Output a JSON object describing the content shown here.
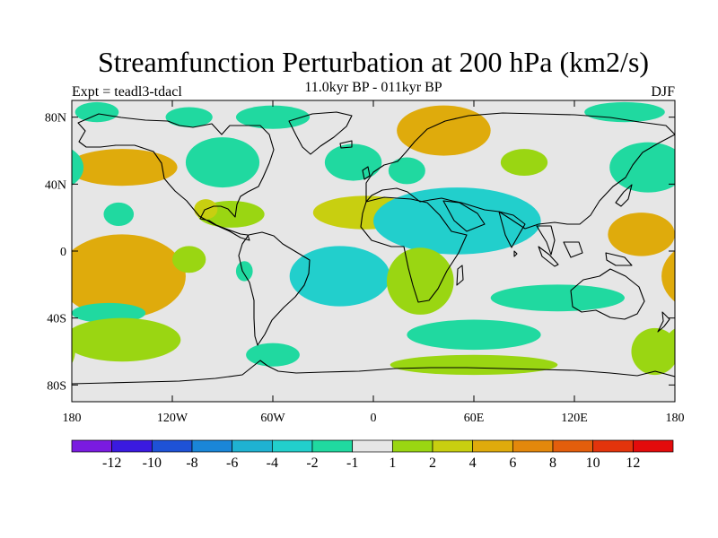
{
  "title": "Streamfunction Perturbation at 200 hPa (km2/s)",
  "left_label": "Expt = teadl3-tdacl",
  "center_label": "11.0kyr BP - 011kyr BP",
  "right_label": "DJF",
  "lat_ticks": [
    "80N",
    "40N",
    "0",
    "40S",
    "80S"
  ],
  "lon_ticks": [
    "180",
    "120W",
    "60W",
    "0",
    "60E",
    "120E",
    "180"
  ],
  "colors": {
    "background": "#e6e6e6",
    "frame": "#000000",
    "coast": "#000000"
  },
  "colorbar": {
    "colors": [
      "#7a1be0",
      "#3a1ae0",
      "#1e52d6",
      "#1a86d8",
      "#1fb2d2",
      "#22cfcc",
      "#20d9a0",
      "#e6e6e6",
      "#9ad612",
      "#c8cf10",
      "#dfab0c",
      "#e3880c",
      "#e35e0c",
      "#e3340c",
      "#e30b0c"
    ],
    "labels": [
      "-12",
      "-10",
      "-8",
      "-6",
      "-4",
      "-2",
      "-1",
      "1",
      "2",
      "4",
      "6",
      "8",
      "10",
      "12"
    ]
  },
  "chart_data": {
    "type": "heatmap",
    "title": "Streamfunction Perturbation at 200 hPa (km2/s)",
    "x_range": [
      -180,
      180
    ],
    "y_range": [
      -90,
      90
    ],
    "units": "km2/s",
    "season": "DJF",
    "contour_levels": [
      -12,
      -10,
      -8,
      -6,
      -4,
      -2,
      -1,
      1,
      2,
      4,
      6,
      8,
      10,
      12
    ],
    "anomalies": [
      {
        "lon": -150,
        "lat": 50,
        "rx": 33,
        "ry": 11,
        "value": 4
      },
      {
        "lon": -165,
        "lat": 83,
        "rx": 13,
        "ry": 6,
        "value": -1.5
      },
      {
        "lon": -110,
        "lat": 80,
        "rx": 14,
        "ry": 6,
        "value": -1.5
      },
      {
        "lon": -60,
        "lat": 80,
        "rx": 22,
        "ry": 7,
        "value": -1.5
      },
      {
        "lon": -90,
        "lat": 53,
        "rx": 22,
        "ry": 15,
        "value": -1.5
      },
      {
        "lon": -12,
        "lat": 53,
        "rx": 17,
        "ry": 11,
        "value": -1.5
      },
      {
        "lon": 20,
        "lat": 48,
        "rx": 11,
        "ry": 8,
        "value": -1.5
      },
      {
        "lon": 42,
        "lat": 72,
        "rx": 28,
        "ry": 15,
        "value": 4
      },
      {
        "lon": 90,
        "lat": 53,
        "rx": 14,
        "ry": 8,
        "value": 1.5
      },
      {
        "lon": 164,
        "lat": 50,
        "rx": 23,
        "ry": 15,
        "value": -1.5
      },
      {
        "lon": 150,
        "lat": 83,
        "rx": 24,
        "ry": 6,
        "value": -1.5
      },
      {
        "lon": -5,
        "lat": 23,
        "rx": 31,
        "ry": 10,
        "value": 3
      },
      {
        "lon": -152,
        "lat": 22,
        "rx": 9,
        "ry": 7,
        "value": -1.5
      },
      {
        "lon": -85,
        "lat": 22,
        "rx": 20,
        "ry": 8,
        "value": 1.5
      },
      {
        "lon": -100,
        "lat": 25,
        "rx": 7,
        "ry": 6,
        "value": 3
      },
      {
        "lon": 50,
        "lat": 18,
        "rx": 50,
        "ry": 20,
        "value": -3
      },
      {
        "lon": 160,
        "lat": 10,
        "rx": 20,
        "ry": 13,
        "value": 4
      },
      {
        "lon": -150,
        "lat": -15,
        "rx": 38,
        "ry": 25,
        "value": 4
      },
      {
        "lon": -110,
        "lat": -5,
        "rx": 10,
        "ry": 8,
        "value": 1.5
      },
      {
        "lon": -77,
        "lat": -12,
        "rx": 5,
        "ry": 6,
        "value": -1.5
      },
      {
        "lon": -20,
        "lat": -15,
        "rx": 30,
        "ry": 18,
        "value": -3
      },
      {
        "lon": 28,
        "lat": -18,
        "rx": 20,
        "ry": 20,
        "value": 1.5
      },
      {
        "lon": 110,
        "lat": -28,
        "rx": 40,
        "ry": 8,
        "value": -1.5
      },
      {
        "lon": -158,
        "lat": -37,
        "rx": 22,
        "ry": 6,
        "value": -1.5
      },
      {
        "lon": -150,
        "lat": -53,
        "rx": 35,
        "ry": 13,
        "value": 1.5
      },
      {
        "lon": -60,
        "lat": -62,
        "rx": 16,
        "ry": 7,
        "value": -1.5
      },
      {
        "lon": 60,
        "lat": -50,
        "rx": 40,
        "ry": 9,
        "value": -1.5
      },
      {
        "lon": 60,
        "lat": -68,
        "rx": 50,
        "ry": 6,
        "value": 1.5
      },
      {
        "lon": 168,
        "lat": -60,
        "rx": 14,
        "ry": 14,
        "value": 1.5
      }
    ]
  }
}
